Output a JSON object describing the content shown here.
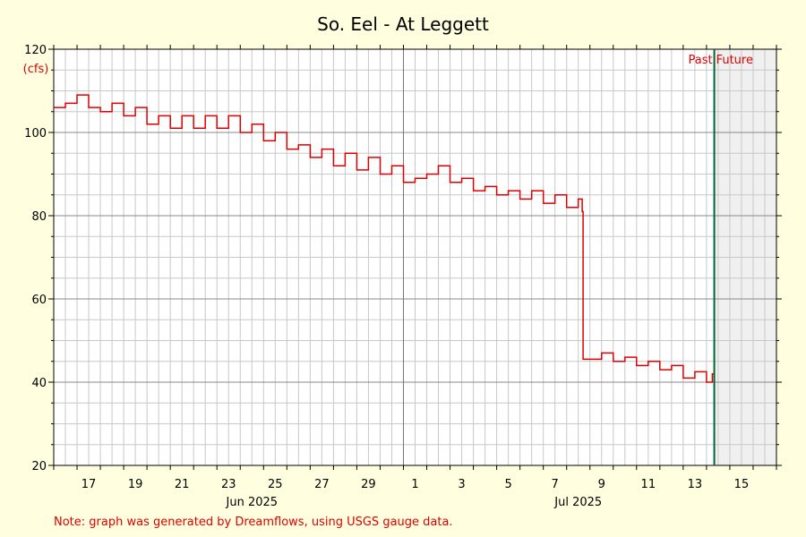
{
  "chart_data": {
    "type": "line",
    "title": "So. Eel - At Leggett",
    "ylabel": "(cfs)",
    "xlabel": "",
    "ylim": [
      20,
      120
    ],
    "y_ticks": [
      20,
      40,
      60,
      80,
      100,
      120
    ],
    "grid": true,
    "x_axis": {
      "start": "2025-06-16",
      "end": "2025-07-17",
      "day_ticks": [
        "17",
        "19",
        "21",
        "23",
        "25",
        "27",
        "29",
        "1",
        "3",
        "5",
        "7",
        "9",
        "11",
        "13",
        "15"
      ],
      "month_labels": [
        "Jun 2025",
        "Jul 2025"
      ]
    },
    "series": [
      {
        "color": "#dd0000",
        "x": [
          "2025-06-16",
          "2025-06-16T12:00",
          "2025-06-17",
          "2025-06-17T06:00",
          "2025-06-17T12:00",
          "2025-06-18",
          "2025-06-18T12:00",
          "2025-06-19",
          "2025-06-19T12:00",
          "2025-06-20",
          "2025-06-20T12:00",
          "2025-06-21",
          "2025-06-21T12:00",
          "2025-06-22",
          "2025-06-22T12:00",
          "2025-06-23",
          "2025-06-23T12:00",
          "2025-06-24",
          "2025-06-24T12:00",
          "2025-06-25",
          "2025-06-25T12:00",
          "2025-06-26",
          "2025-06-26T12:00",
          "2025-06-27",
          "2025-06-27T12:00",
          "2025-06-28",
          "2025-06-28T12:00",
          "2025-06-29",
          "2025-06-29T12:00",
          "2025-06-30",
          "2025-06-30T12:00",
          "2025-07-01",
          "2025-07-01T12:00",
          "2025-07-02",
          "2025-07-02T12:00",
          "2025-07-03",
          "2025-07-03T12:00",
          "2025-07-04",
          "2025-07-04T12:00",
          "2025-07-05",
          "2025-07-05T12:00",
          "2025-07-06",
          "2025-07-06T12:00",
          "2025-07-07",
          "2025-07-07T12:00",
          "2025-07-08",
          "2025-07-08T12:00",
          "2025-07-08T16:00",
          "2025-07-08T17:00",
          "2025-07-09",
          "2025-07-09T12:00",
          "2025-07-10",
          "2025-07-10T12:00",
          "2025-07-11",
          "2025-07-11T12:00",
          "2025-07-12",
          "2025-07-12T12:00",
          "2025-07-13",
          "2025-07-13T12:00",
          "2025-07-14",
          "2025-07-14T06:00"
        ],
        "y": [
          106,
          107,
          109,
          109,
          106,
          105,
          107,
          104,
          106,
          102,
          104,
          101,
          104,
          101,
          104,
          101,
          104,
          100,
          102,
          98,
          100,
          96,
          97,
          94,
          96,
          92,
          95,
          91,
          94,
          90,
          92,
          88,
          89,
          90,
          92,
          88,
          89,
          86,
          87,
          85,
          86,
          84,
          86,
          83,
          85,
          82,
          84,
          81,
          45.5,
          45.5,
          47,
          45,
          46,
          44,
          45,
          43,
          44,
          41,
          42.5,
          40,
          42
        ]
      }
    ],
    "divider": {
      "date": "2025-07-14T08:00",
      "left_label": "Past",
      "right_label": "Future"
    },
    "footnote": "Note: graph was generated by Dreamflows, using USGS gauge data.",
    "colors": {
      "background": "#ffffe0",
      "plot_background": "#ffffff",
      "future_shade": "#f0f0f0",
      "grid": "#c8c8c8",
      "line": "#dd0000",
      "divider": "#006633",
      "accent_text": "#dd0000"
    }
  }
}
